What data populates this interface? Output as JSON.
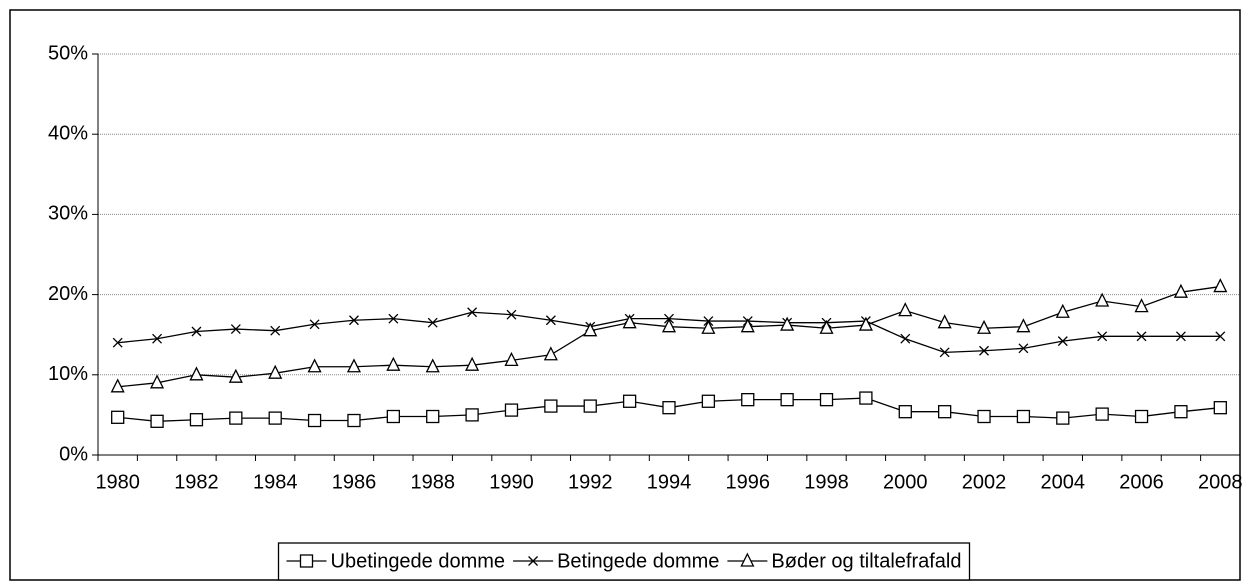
{
  "chart_data": {
    "type": "line",
    "categories": [
      "1980",
      null,
      "1982",
      null,
      "1984",
      null,
      "1986",
      null,
      "1988",
      null,
      "1990",
      null,
      "1992",
      null,
      "1994",
      null,
      "1996",
      null,
      "1998",
      null,
      "2000",
      null,
      "2002",
      null,
      "2004",
      null,
      "2006",
      null,
      "2008"
    ],
    "series": [
      {
        "name": "Ubetingede domme",
        "color": "#000000",
        "marker": "square",
        "values": [
          4.7,
          4.2,
          4.4,
          4.6,
          4.6,
          4.3,
          4.3,
          4.8,
          4.8,
          5.0,
          5.6,
          6.1,
          6.1,
          6.7,
          5.9,
          6.7,
          6.9,
          6.9,
          6.9,
          7.1,
          5.4,
          5.4,
          4.8,
          4.8,
          4.6,
          5.1,
          4.8,
          5.4,
          5.9
        ]
      },
      {
        "name": "Betingede domme",
        "color": "#000000",
        "marker": "x",
        "values": [
          14.0,
          14.5,
          15.4,
          15.7,
          15.5,
          16.3,
          16.8,
          17.0,
          16.5,
          17.8,
          17.5,
          16.8,
          16.0,
          17.0,
          17.0,
          16.7,
          16.7,
          16.5,
          16.5,
          16.7,
          14.5,
          12.8,
          13.0,
          13.3,
          14.2,
          14.8,
          14.8,
          14.8,
          14.8
        ]
      },
      {
        "name": "Bøder og tiltalefrafald",
        "color": "#000000",
        "marker": "triangle",
        "values": [
          8.5,
          9.0,
          10.0,
          9.7,
          10.2,
          11.0,
          11.0,
          11.2,
          11.0,
          11.2,
          11.8,
          12.5,
          15.5,
          16.5,
          16.0,
          15.8,
          16.0,
          16.2,
          15.8,
          16.2,
          18.0,
          16.5,
          15.8,
          16.0,
          17.8,
          19.2,
          18.5,
          20.3,
          21.0
        ]
      }
    ],
    "ylim": [
      0,
      50
    ],
    "yticks": [
      {
        "value": 0,
        "label": "0%"
      },
      {
        "value": 10,
        "label": "10%"
      },
      {
        "value": 20,
        "label": "20%"
      },
      {
        "value": 30,
        "label": "30%"
      },
      {
        "value": 40,
        "label": "40%"
      },
      {
        "value": 50,
        "label": "50%"
      }
    ],
    "grid": true,
    "legend": "bottom"
  }
}
